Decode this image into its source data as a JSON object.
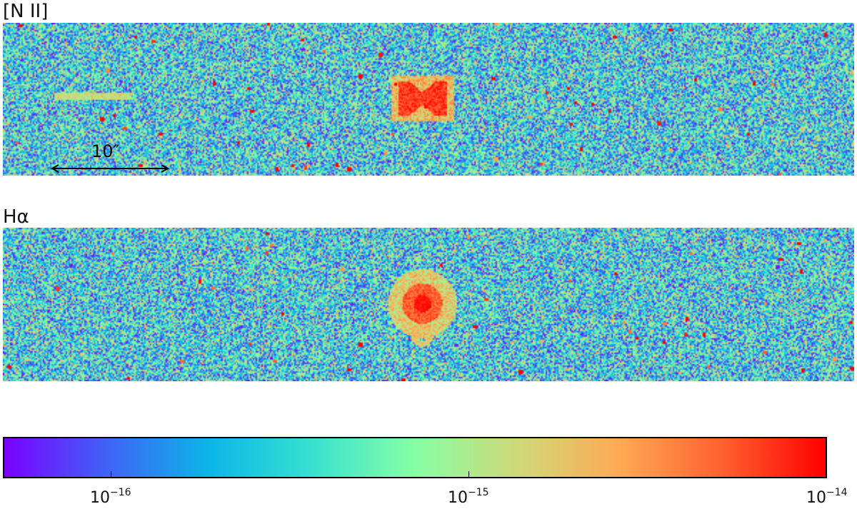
{
  "panels": [
    {
      "label": "[N II]",
      "morphology": "bipolar-hourglass"
    },
    {
      "label": "Hα",
      "morphology": "compact-with-rays"
    }
  ],
  "scalebar": {
    "label": "10″"
  },
  "colorbar": {
    "colormap": "rainbow",
    "colors": [
      "#7a00ff",
      "#4063f7",
      "#0bb6e7",
      "#38e2d0",
      "#86ffa5",
      "#d0d978",
      "#ffa954",
      "#ff602f",
      "#ff0000"
    ],
    "scale": "log",
    "range": [
      5e-17,
      1e-14
    ],
    "ticks": [
      {
        "value": 1e-16,
        "base": "10",
        "exp": "−16"
      },
      {
        "value": 1e-15,
        "base": "10",
        "exp": "−15"
      },
      {
        "value": 1e-14,
        "base": "10",
        "exp": "−14"
      }
    ]
  }
}
